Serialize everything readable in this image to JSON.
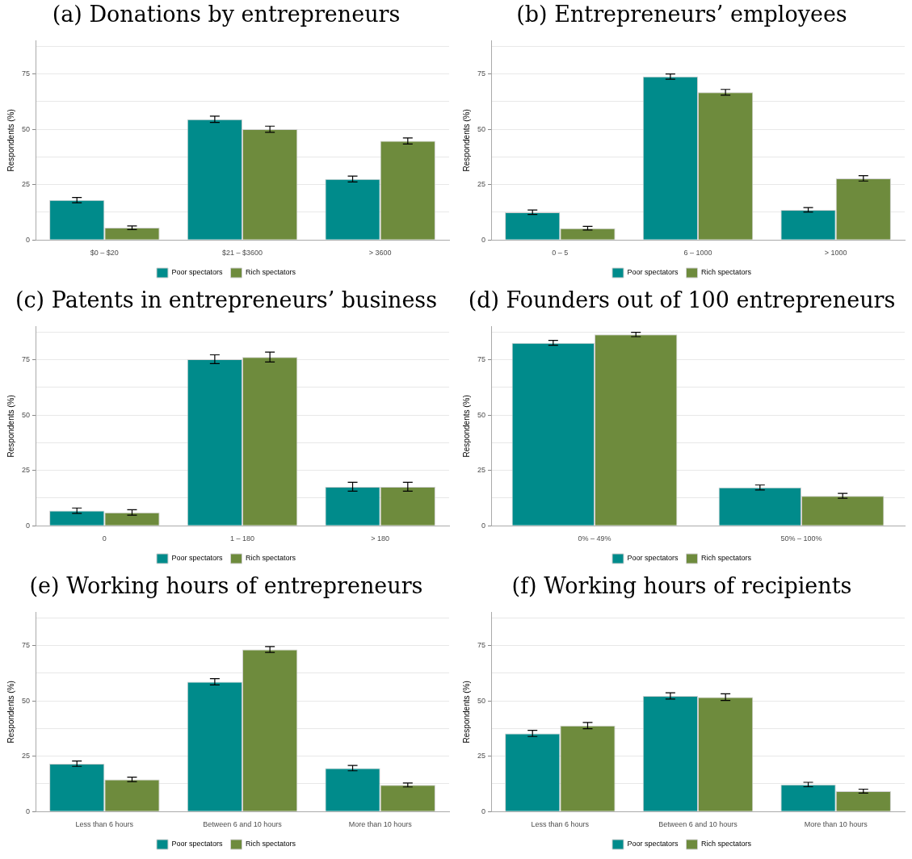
{
  "chart_data": [
    {
      "type": "bar",
      "title": "(a) Donations by entrepreneurs",
      "ylabel": "Respondents (%)",
      "categories": [
        "$0 – $20",
        "$21 – $3600",
        "> 3600"
      ],
      "series": [
        {
          "name": "Poor spectators",
          "color": "#008b8b",
          "values": [
            18,
            54.5,
            27.5
          ],
          "errors": [
            1.2,
            1.4,
            1.3
          ]
        },
        {
          "name": "Rich spectators",
          "color": "#6e8b3d",
          "values": [
            5.5,
            50,
            44.7
          ],
          "errors": [
            0.8,
            1.4,
            1.4
          ]
        }
      ],
      "ylim": [
        0,
        90
      ],
      "yticks": [
        0,
        {
          "value": 12.5,
          "label": null
        },
        25,
        {
          "value": 37.5,
          "label": null
        },
        50,
        {
          "value": 62.5,
          "label": null
        },
        75,
        {
          "value": 87.5,
          "label": null
        }
      ],
      "grid": "y",
      "legend": "bottom"
    },
    {
      "type": "bar",
      "title": "(b) Entrepreneurs’ employees",
      "ylabel": "Respondents (%)",
      "categories": [
        "0 – 5",
        "6 – 1000",
        "> 1000"
      ],
      "series": [
        {
          "name": "Poor spectators",
          "color": "#008b8b",
          "values": [
            12.5,
            73.8,
            13.6
          ],
          "errors": [
            1.0,
            1.2,
            1.0
          ]
        },
        {
          "name": "Rich spectators",
          "color": "#6e8b3d",
          "values": [
            5.3,
            66.7,
            27.8
          ],
          "errors": [
            0.8,
            1.3,
            1.2
          ]
        }
      ],
      "ylim": [
        0,
        90
      ],
      "yticks": [
        0,
        {
          "value": 12.5,
          "label": null
        },
        25,
        {
          "value": 37.5,
          "label": null
        },
        50,
        {
          "value": 62.5,
          "label": null
        },
        75,
        {
          "value": 87.5,
          "label": null
        }
      ],
      "grid": "y",
      "legend": "bottom"
    },
    {
      "type": "bar",
      "title": "(c) Patents in entrepreneurs’ business",
      "ylabel": "Respondents (%)",
      "categories": [
        "0",
        "1 – 180",
        "> 180"
      ],
      "series": [
        {
          "name": "Poor spectators",
          "color": "#008b8b",
          "values": [
            6.8,
            75.2,
            17.6
          ],
          "errors": [
            1.2,
            2.0,
            2.0
          ]
        },
        {
          "name": "Rich spectators",
          "color": "#6e8b3d",
          "values": [
            6.0,
            76.2,
            17.6
          ],
          "errors": [
            1.2,
            2.2,
            2.0
          ]
        }
      ],
      "ylim": [
        0,
        90
      ],
      "yticks": [
        0,
        {
          "value": 12.5,
          "label": null
        },
        25,
        {
          "value": 37.5,
          "label": null
        },
        50,
        {
          "value": 62.5,
          "label": null
        },
        75,
        {
          "value": 87.5,
          "label": null
        }
      ],
      "grid": "y",
      "legend": "bottom"
    },
    {
      "type": "bar",
      "title": "(d) Founders out of 100 entrepreneurs",
      "ylabel": "Respondents (%)",
      "categories": [
        "0% – 49%",
        "50% – 100%"
      ],
      "series": [
        {
          "name": "Poor spectators",
          "color": "#008b8b",
          "values": [
            82.6,
            17.3
          ],
          "errors": [
            1.1,
            1.1
          ]
        },
        {
          "name": "Rich spectators",
          "color": "#6e8b3d",
          "values": [
            86.4,
            13.5
          ],
          "errors": [
            1.0,
            1.1
          ]
        }
      ],
      "ylim": [
        0,
        90
      ],
      "yticks": [
        0,
        {
          "value": 12.5,
          "label": null
        },
        25,
        {
          "value": 37.5,
          "label": null
        },
        50,
        {
          "value": 62.5,
          "label": null
        },
        75,
        {
          "value": 87.5,
          "label": null
        }
      ],
      "grid": "y",
      "legend": "bottom"
    },
    {
      "type": "bar",
      "title": "(e) Working hours of entrepreneurs",
      "ylabel": "Respondents (%)",
      "categories": [
        "Less than 6 hours",
        "Between 6 and 10 hours",
        "More than 10 hours"
      ],
      "series": [
        {
          "name": "Poor spectators",
          "color": "#008b8b",
          "values": [
            21.6,
            58.6,
            19.6
          ],
          "errors": [
            1.2,
            1.4,
            1.2
          ]
        },
        {
          "name": "Rich spectators",
          "color": "#6e8b3d",
          "values": [
            14.5,
            73.2,
            12.0
          ],
          "errors": [
            1.0,
            1.3,
            0.9
          ]
        }
      ],
      "ylim": [
        0,
        90
      ],
      "yticks": [
        0,
        {
          "value": 12.5,
          "label": null
        },
        25,
        {
          "value": 37.5,
          "label": null
        },
        50,
        {
          "value": 62.5,
          "label": null
        },
        75,
        {
          "value": 87.5,
          "label": null
        }
      ],
      "grid": "y",
      "legend": "bottom"
    },
    {
      "type": "bar",
      "title": "(f) Working hours of recipients",
      "ylabel": "Respondents (%)",
      "categories": [
        "Less than 6 hours",
        "Between 6 and 10 hours",
        "More than 10 hours"
      ],
      "series": [
        {
          "name": "Poor spectators",
          "color": "#008b8b",
          "values": [
            35.3,
            52.2,
            12.2
          ],
          "errors": [
            1.4,
            1.4,
            1.0
          ]
        },
        {
          "name": "Rich spectators",
          "color": "#6e8b3d",
          "values": [
            38.8,
            51.7,
            9.2
          ],
          "errors": [
            1.4,
            1.5,
            0.9
          ]
        }
      ],
      "ylim": [
        0,
        90
      ],
      "yticks": [
        0,
        {
          "value": 12.5,
          "label": null
        },
        25,
        {
          "value": 37.5,
          "label": null
        },
        50,
        {
          "value": 62.5,
          "label": null
        },
        75,
        {
          "value": 87.5,
          "label": null
        }
      ],
      "grid": "y",
      "legend": "bottom"
    }
  ]
}
